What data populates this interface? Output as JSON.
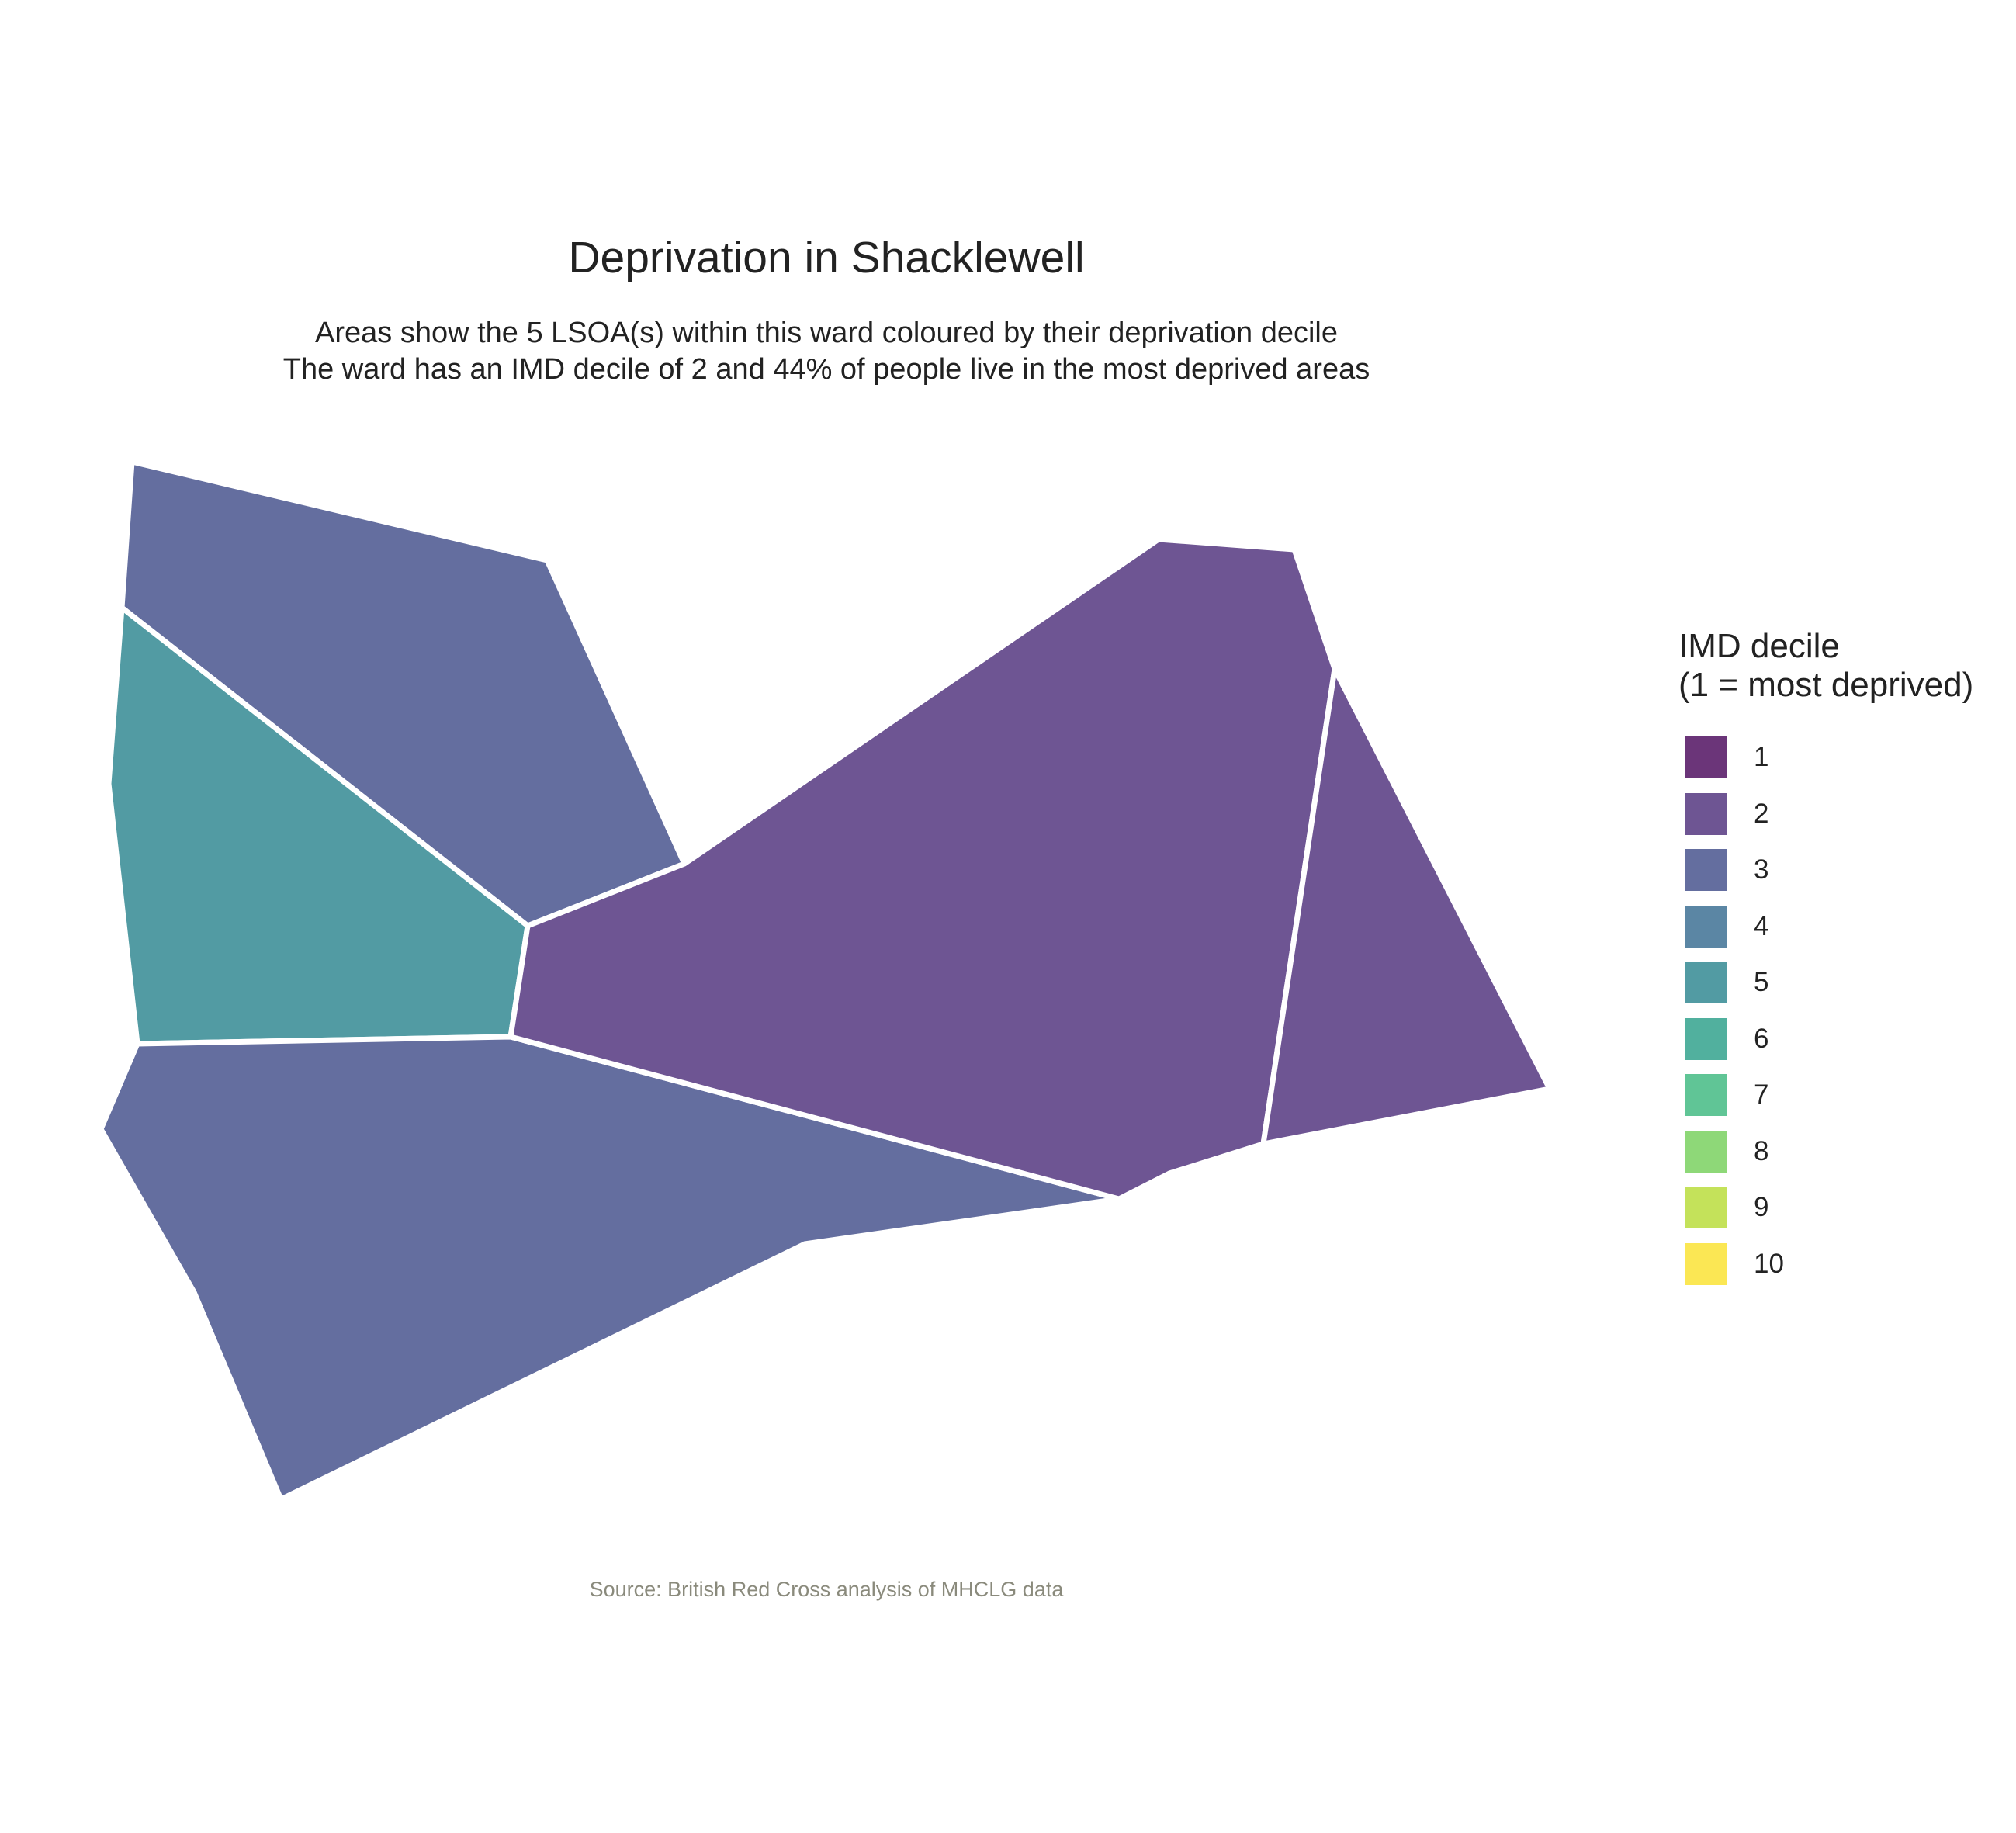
{
  "title": "Deprivation in Shacklewell",
  "subtitle_line1": "Areas show the 5 LSOA(s) within this ward coloured by their deprivation decile",
  "subtitle_line2": "The ward has an IMD decile of 2 and 44% of people live in the most deprived areas",
  "caption": "Source: British Red Cross analysis of MHCLG data",
  "legend": {
    "title_line1": "IMD decile",
    "title_line2": "(1 = most deprived)",
    "items": [
      {
        "label": "1",
        "color": "#6b3579"
      },
      {
        "label": "2",
        "color": "#6e5593"
      },
      {
        "label": "3",
        "color": "#646e9f"
      },
      {
        "label": "4",
        "color": "#5b86a4"
      },
      {
        "label": "5",
        "color": "#529ba3"
      },
      {
        "label": "6",
        "color": "#51b09e"
      },
      {
        "label": "7",
        "color": "#60c596"
      },
      {
        "label": "8",
        "color": "#8ed878"
      },
      {
        "label": "9",
        "color": "#c4e25a"
      },
      {
        "label": "10",
        "color": "#fbe754"
      }
    ]
  },
  "chart_data": {
    "type": "map",
    "regions": [
      {
        "name": "",
        "decile": 3
      },
      {
        "name": "",
        "decile": 5
      },
      {
        "name": "",
        "decile": 3
      },
      {
        "name": "",
        "decile": 2
      },
      {
        "name": "",
        "decile": 2
      }
    ]
  }
}
